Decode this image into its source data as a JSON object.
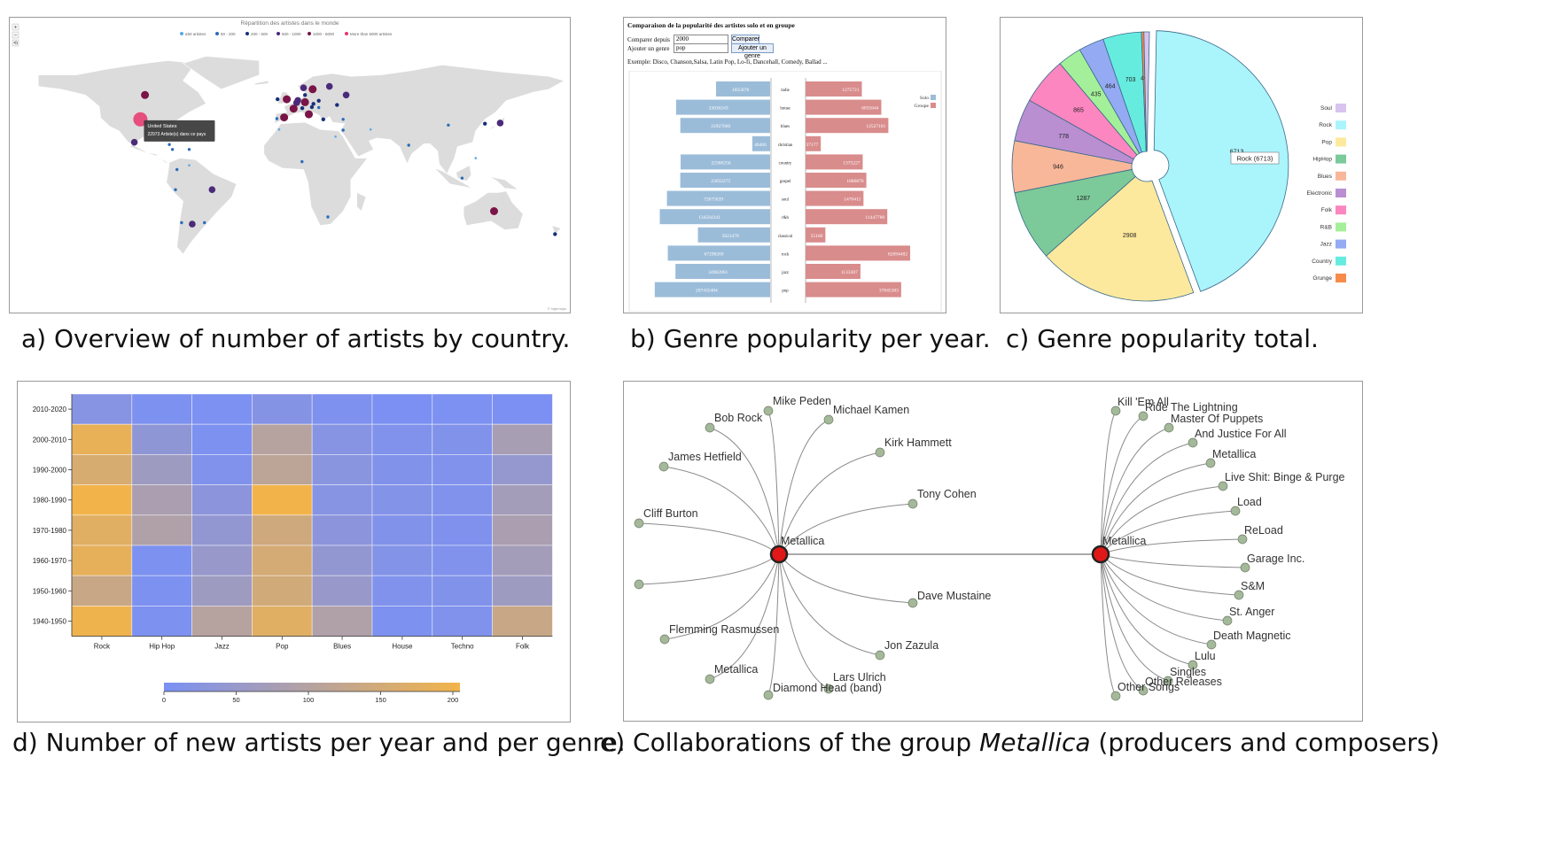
{
  "captions": {
    "a_prefix": "a) ",
    "a_text": "Overview of number of artists by country.",
    "b": "b) Genre popularity per year.",
    "c": "c) Genre popularity total.",
    "d": "d) Number of new artists per year and per genre.",
    "e_prefix": "e) Collaborations of the group ",
    "e_italic": "Metallica",
    "e_suffix": " (producers and composers)"
  },
  "map": {
    "title": "Répartition des artistes dans le monde",
    "legend": [
      "≤50 artistes",
      "50 - 200",
      "200 - 500",
      "500 - 1000",
      "1000 - 5000",
      "More than 5000 artistes"
    ],
    "legend_colors": [
      "#5aa9e6",
      "#2a6db8",
      "#1a2f7a",
      "#4b2a7a",
      "#7a1446",
      "#e8356c"
    ],
    "tooltip_country": "United States",
    "tooltip_value": "22973 Artiste(s) dans ce pays",
    "credit": "© highmaps",
    "zoom_controls": [
      "+",
      "−",
      "⟲"
    ],
    "land_color": "#dcdcdc",
    "bubbles": [
      {
        "country": "United States",
        "lon": -98,
        "lat": 39,
        "cls": 5
      },
      {
        "country": "Canada",
        "lon": -95,
        "lat": 56,
        "cls": 4
      },
      {
        "country": "Mexico",
        "lon": -102,
        "lat": 23,
        "cls": 3
      },
      {
        "country": "Cuba",
        "lon": -79,
        "lat": 21.5,
        "cls": 1
      },
      {
        "country": "Jamaica",
        "lon": -77,
        "lat": 18,
        "cls": 1
      },
      {
        "country": "Puerto Rico",
        "lon": -66,
        "lat": 18,
        "cls": 1
      },
      {
        "country": "Colombia",
        "lon": -74,
        "lat": 4,
        "cls": 1
      },
      {
        "country": "Venezuela",
        "lon": -66,
        "lat": 7,
        "cls": 0
      },
      {
        "country": "Brazil",
        "lon": -51,
        "lat": -10,
        "cls": 3
      },
      {
        "country": "Argentina",
        "lon": -64,
        "lat": -34,
        "cls": 3
      },
      {
        "country": "Chile",
        "lon": -71,
        "lat": -33,
        "cls": 1
      },
      {
        "country": "Peru",
        "lon": -75,
        "lat": -10,
        "cls": 1
      },
      {
        "country": "Uruguay",
        "lon": -56,
        "lat": -33,
        "cls": 1
      },
      {
        "country": "United Kingdom",
        "lon": -2,
        "lat": 53,
        "cls": 4
      },
      {
        "country": "Ireland",
        "lon": -8,
        "lat": 53,
        "cls": 2
      },
      {
        "country": "France",
        "lon": 2.5,
        "lat": 46.5,
        "cls": 4
      },
      {
        "country": "Spain",
        "lon": -3.7,
        "lat": 40.4,
        "cls": 4
      },
      {
        "country": "Portugal",
        "lon": -8.5,
        "lat": 39.5,
        "cls": 1
      },
      {
        "country": "Italy",
        "lon": 12.5,
        "lat": 42.5,
        "cls": 4
      },
      {
        "country": "Germany",
        "lon": 10,
        "lat": 51,
        "cls": 4
      },
      {
        "country": "Netherlands",
        "lon": 5.3,
        "lat": 52.2,
        "cls": 3
      },
      {
        "country": "Belgium",
        "lon": 4.5,
        "lat": 50.6,
        "cls": 3
      },
      {
        "country": "Switzerland",
        "lon": 8.2,
        "lat": 46.8,
        "cls": 2
      },
      {
        "country": "Austria",
        "lon": 14.5,
        "lat": 47.5,
        "cls": 2
      },
      {
        "country": "Sweden",
        "lon": 15,
        "lat": 60,
        "cls": 4
      },
      {
        "country": "Norway",
        "lon": 9,
        "lat": 61,
        "cls": 3
      },
      {
        "country": "Finland",
        "lon": 26,
        "lat": 62,
        "cls": 3
      },
      {
        "country": "Denmark",
        "lon": 10,
        "lat": 56,
        "cls": 2
      },
      {
        "country": "Poland",
        "lon": 19,
        "lat": 52,
        "cls": 2
      },
      {
        "country": "Czech Republic",
        "lon": 15.5,
        "lat": 49.8,
        "cls": 2
      },
      {
        "country": "Hungary",
        "lon": 19,
        "lat": 47.2,
        "cls": 1
      },
      {
        "country": "Greece",
        "lon": 22,
        "lat": 39,
        "cls": 2
      },
      {
        "country": "Russia",
        "lon": 37,
        "lat": 56,
        "cls": 3
      },
      {
        "country": "Ukraine",
        "lon": 31,
        "lat": 49,
        "cls": 2
      },
      {
        "country": "Turkey",
        "lon": 35,
        "lat": 39,
        "cls": 1
      },
      {
        "country": "Israel",
        "lon": 35,
        "lat": 31.5,
        "cls": 1
      },
      {
        "country": "Iran",
        "lon": 53,
        "lat": 32,
        "cls": 0
      },
      {
        "country": "Egypt",
        "lon": 30,
        "lat": 27,
        "cls": 0
      },
      {
        "country": "Morocco",
        "lon": -7,
        "lat": 32,
        "cls": 0
      },
      {
        "country": "Nigeria",
        "lon": 8,
        "lat": 9.5,
        "cls": 1
      },
      {
        "country": "South Africa",
        "lon": 25,
        "lat": -29,
        "cls": 1
      },
      {
        "country": "India",
        "lon": 78,
        "lat": 21,
        "cls": 1
      },
      {
        "country": "China",
        "lon": 104,
        "lat": 35,
        "cls": 1
      },
      {
        "country": "Korea",
        "lon": 128,
        "lat": 36,
        "cls": 2
      },
      {
        "country": "Japan",
        "lon": 138,
        "lat": 36.5,
        "cls": 3
      },
      {
        "country": "Indonesia",
        "lon": 113,
        "lat": -2,
        "cls": 1
      },
      {
        "country": "Philippines",
        "lon": 122,
        "lat": 12,
        "cls": 0
      },
      {
        "country": "Australia",
        "lon": 134,
        "lat": -25,
        "cls": 4
      },
      {
        "country": "New Zealand",
        "lon": 174,
        "lat": -41,
        "cls": 2
      }
    ]
  },
  "popularity": {
    "title": "Comparaison de la popularité des artistes solo et en groupe",
    "label_since": "Comparer depuis",
    "since_value": "2000",
    "compare_button": "Comparer",
    "label_add_genre": "Ajouter un genre",
    "genre_value": "pop",
    "add_button": "Ajouter un genre",
    "example_text": "Exemple: Disco, Chanson,Salsa, Latin Pop, Lo-fi, Dancehall, Comedy, Ballad ...",
    "legend": [
      "Solo",
      "Groupe"
    ],
    "solo_color": "#9bbcd9",
    "groupe_color": "#d98c8c"
  },
  "pie": {
    "tooltip": "Rock (6713)"
  },
  "heatmap": {
    "colorbar_ticks": [
      "0",
      "50",
      "100",
      "150",
      "200"
    ],
    "color_low": "#7a90f4",
    "color_high": "#f2b44a"
  },
  "network": {
    "center_left": "Metallica",
    "center_right": "Metallica",
    "left_nodes": [
      "Mike Peden",
      "Bob Rock",
      "Michael Kamen",
      "Kirk Hammett",
      "James Hetfield",
      "Tony Cohen",
      "Cliff Burton",
      "",
      "Dave Mustaine",
      "Flemming Rasmussen",
      "Jon Zazula",
      "Metallica",
      "Lars Ulrich",
      "Diamond Head (band)"
    ],
    "right_nodes": [
      "Kill 'Em All",
      "Ride The Lightning",
      "Master Of Puppets",
      "And Justice For All",
      "Metallica",
      "Live Shit: Binge & Purge",
      "Load",
      "ReLoad",
      "Garage Inc.",
      "S&M",
      "St. Anger",
      "Death Magnetic",
      "Lulu",
      "Singles",
      "Other Releases",
      "Other Songs"
    ],
    "node_color": "#a4b89a",
    "center_color": "#e01818"
  },
  "chart_data": [
    {
      "type": "bar",
      "subtype": "diverging",
      "title": "Comparaison de la popularité des artistes solo et en groupe",
      "categories": [
        "indie",
        "house",
        "blues",
        "christian",
        "country",
        "gospel",
        "soul",
        "r&b",
        "classical",
        "rock",
        "jazz",
        "pop"
      ],
      "series": [
        {
          "name": "Solo",
          "values": [
            1055878,
            33030243,
            22927660,
            46406,
            22360256,
            23032275,
            72675039,
            134564341,
            5021478,
            67298269,
            34902061,
            207435484
          ]
        },
        {
          "name": "Groupe",
          "values": [
            1275721,
            6835644,
            12527181,
            37177,
            1375227,
            1880876,
            1470411,
            11447780,
            55160,
            82094482,
            1133307,
            37845383
          ]
        }
      ],
      "scale": "log"
    },
    {
      "type": "pie",
      "labels": [
        "Soul",
        "Rock",
        "Pop",
        "HipHop",
        "Blues",
        "Electronic",
        "Folk",
        "R&B",
        "Jazz",
        "Country",
        "Grunge"
      ],
      "values": [
        100,
        6713,
        2908,
        1287,
        946,
        778,
        865,
        435,
        464,
        703,
        46
      ],
      "slice_labels": [
        "",
        "6713",
        "2908",
        "1287",
        "946",
        "778",
        "865",
        "435",
        "464",
        "703",
        "46"
      ],
      "colors": [
        "#d8c4ee",
        "#aaf4fc",
        "#fde99d",
        "#7cc99a",
        "#f9b79a",
        "#b98fd2",
        "#fb86c0",
        "#a4f09a",
        "#94aaf2",
        "#66ecdf",
        "#f78c4a"
      ],
      "exploded": "Rock",
      "legend_placement": "right"
    },
    {
      "type": "heatmap",
      "x": [
        "Rock",
        "Hip Hop",
        "Jazz",
        "Pop",
        "Blues",
        "House",
        "Techno",
        "Folk"
      ],
      "y": [
        "2010-2020",
        "2000-2010",
        "1990-2000",
        "1980-1990",
        "1970-1980",
        "1960-1970",
        "1950-1960",
        "1940-1950"
      ],
      "values": [
        [
          20,
          5,
          3,
          18,
          6,
          2,
          3,
          2
        ],
        [
          185,
          35,
          5,
          100,
          20,
          10,
          12,
          75
        ],
        [
          155,
          60,
          10,
          110,
          25,
          12,
          10,
          45
        ],
        [
          200,
          80,
          30,
          220,
          20,
          15,
          10,
          70
        ],
        [
          170,
          90,
          40,
          140,
          30,
          12,
          8,
          80
        ],
        [
          180,
          5,
          50,
          150,
          40,
          15,
          10,
          70
        ],
        [
          130,
          5,
          60,
          145,
          50,
          10,
          12,
          60
        ],
        [
          195,
          5,
          100,
          170,
          90,
          5,
          10,
          130
        ]
      ],
      "colorbar_range": [
        0,
        200
      ]
    }
  ]
}
